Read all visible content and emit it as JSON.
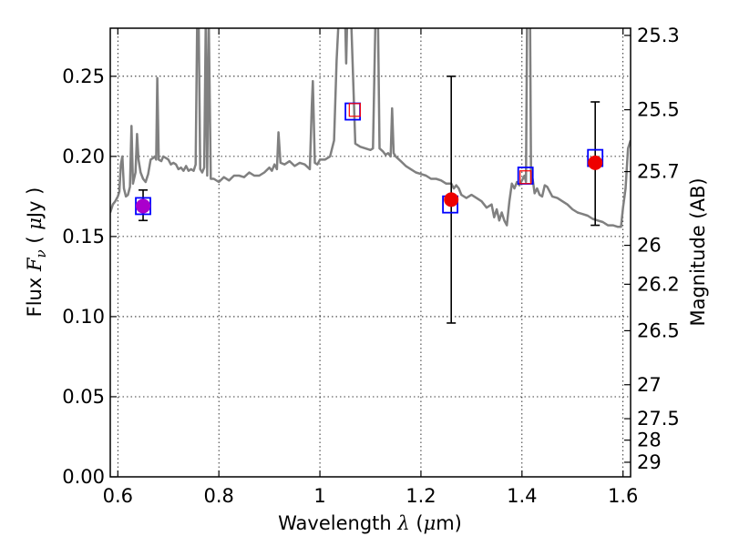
{
  "chart_data": {
    "type": "scatter",
    "xlabel": "Wavelength  λ (μm)",
    "ylabel": "Flux  Fν ( μJy )",
    "y2label": "Magnitude (AB)",
    "xlim": [
      0.585,
      1.615
    ],
    "ylim": [
      0.0,
      0.28
    ],
    "grid": true,
    "x_ticks": [
      {
        "value": 0.6,
        "label": "0.6"
      },
      {
        "value": 0.8,
        "label": "0.8"
      },
      {
        "value": 1.0,
        "label": "1"
      },
      {
        "value": 1.2,
        "label": "1.2"
      },
      {
        "value": 1.4,
        "label": "1.4"
      },
      {
        "value": 1.6,
        "label": "1.6"
      }
    ],
    "y_ticks": [
      {
        "value": 0.0,
        "label": "0.00"
      },
      {
        "value": 0.05,
        "label": "0.05"
      },
      {
        "value": 0.1,
        "label": "0.10"
      },
      {
        "value": 0.15,
        "label": "0.15"
      },
      {
        "value": 0.2,
        "label": "0.20"
      },
      {
        "value": 0.25,
        "label": "0.25"
      }
    ],
    "mag_ticks": [
      {
        "label": "25.3",
        "flux": 0.2755
      },
      {
        "label": "25.5",
        "flux": 0.2291
      },
      {
        "label": "25.7",
        "flux": 0.1905
      },
      {
        "label": "26",
        "flux": 0.1445
      },
      {
        "label": "26.2",
        "flux": 0.1202
      },
      {
        "label": "26.5",
        "flux": 0.0912
      },
      {
        "label": "27",
        "flux": 0.0575
      },
      {
        "label": "27.5",
        "flux": 0.0363
      },
      {
        "label": "28",
        "flux": 0.0229
      },
      {
        "label": "29",
        "flux": 0.0091
      }
    ],
    "model_spectrum": {
      "color": "#808080",
      "points": [
        [
          0.585,
          0.165
        ],
        [
          0.59,
          0.17
        ],
        [
          0.595,
          0.172
        ],
        [
          0.6,
          0.175
        ],
        [
          0.603,
          0.178
        ],
        [
          0.606,
          0.195
        ],
        [
          0.609,
          0.2
        ],
        [
          0.612,
          0.18
        ],
        [
          0.616,
          0.175
        ],
        [
          0.62,
          0.176
        ],
        [
          0.624,
          0.181
        ],
        [
          0.627,
          0.219
        ],
        [
          0.63,
          0.183
        ],
        [
          0.635,
          0.19
        ],
        [
          0.638,
          0.214
        ],
        [
          0.641,
          0.198
        ],
        [
          0.645,
          0.19
        ],
        [
          0.65,
          0.186
        ],
        [
          0.655,
          0.184
        ],
        [
          0.66,
          0.189
        ],
        [
          0.665,
          0.198
        ],
        [
          0.67,
          0.199
        ],
        [
          0.673,
          0.2
        ],
        [
          0.676,
          0.198
        ],
        [
          0.678,
          0.249
        ],
        [
          0.681,
          0.198
        ],
        [
          0.686,
          0.197
        ],
        [
          0.69,
          0.2
        ],
        [
          0.695,
          0.199
        ],
        [
          0.7,
          0.198
        ],
        [
          0.705,
          0.195
        ],
        [
          0.71,
          0.196
        ],
        [
          0.715,
          0.195
        ],
        [
          0.72,
          0.192
        ],
        [
          0.725,
          0.193
        ],
        [
          0.73,
          0.191
        ],
        [
          0.735,
          0.194
        ],
        [
          0.74,
          0.191
        ],
        [
          0.745,
          0.192
        ],
        [
          0.75,
          0.191
        ],
        [
          0.754,
          0.195
        ],
        [
          0.757,
          0.285
        ],
        [
          0.76,
          0.285
        ],
        [
          0.763,
          0.192
        ],
        [
          0.767,
          0.19
        ],
        [
          0.771,
          0.193
        ],
        [
          0.774,
          0.285
        ],
        [
          0.777,
          0.188
        ],
        [
          0.78,
          0.285
        ],
        [
          0.784,
          0.186
        ],
        [
          0.79,
          0.186
        ],
        [
          0.8,
          0.184
        ],
        [
          0.81,
          0.187
        ],
        [
          0.82,
          0.185
        ],
        [
          0.83,
          0.188
        ],
        [
          0.84,
          0.188
        ],
        [
          0.85,
          0.187
        ],
        [
          0.86,
          0.19
        ],
        [
          0.87,
          0.188
        ],
        [
          0.88,
          0.188
        ],
        [
          0.89,
          0.19
        ],
        [
          0.9,
          0.193
        ],
        [
          0.905,
          0.191
        ],
        [
          0.91,
          0.195
        ],
        [
          0.915,
          0.192
        ],
        [
          0.918,
          0.215
        ],
        [
          0.922,
          0.196
        ],
        [
          0.93,
          0.195
        ],
        [
          0.94,
          0.197
        ],
        [
          0.95,
          0.194
        ],
        [
          0.96,
          0.196
        ],
        [
          0.97,
          0.195
        ],
        [
          0.98,
          0.192
        ],
        [
          0.984,
          0.232
        ],
        [
          0.986,
          0.247
        ],
        [
          0.99,
          0.196
        ],
        [
          0.995,
          0.195
        ],
        [
          1.0,
          0.198
        ],
        [
          1.01,
          0.198
        ],
        [
          1.02,
          0.2
        ],
        [
          1.028,
          0.21
        ],
        [
          1.033,
          0.26
        ],
        [
          1.037,
          0.285
        ],
        [
          1.05,
          0.285
        ],
        [
          1.052,
          0.258
        ],
        [
          1.054,
          0.285
        ],
        [
          1.062,
          0.285
        ],
        [
          1.07,
          0.208
        ],
        [
          1.08,
          0.206
        ],
        [
          1.09,
          0.205
        ],
        [
          1.1,
          0.204
        ],
        [
          1.105,
          0.205
        ],
        [
          1.11,
          0.285
        ],
        [
          1.115,
          0.285
        ],
        [
          1.118,
          0.205
        ],
        [
          1.125,
          0.203
        ],
        [
          1.13,
          0.201
        ],
        [
          1.135,
          0.202
        ],
        [
          1.14,
          0.2
        ],
        [
          1.143,
          0.23
        ],
        [
          1.146,
          0.202
        ],
        [
          1.15,
          0.2
        ],
        [
          1.16,
          0.197
        ],
        [
          1.17,
          0.194
        ],
        [
          1.18,
          0.192
        ],
        [
          1.19,
          0.19
        ],
        [
          1.2,
          0.189
        ],
        [
          1.21,
          0.188
        ],
        [
          1.22,
          0.186
        ],
        [
          1.23,
          0.186
        ],
        [
          1.24,
          0.185
        ],
        [
          1.25,
          0.183
        ],
        [
          1.26,
          0.183
        ],
        [
          1.265,
          0.18
        ],
        [
          1.27,
          0.182
        ],
        [
          1.275,
          0.18
        ],
        [
          1.28,
          0.176
        ],
        [
          1.29,
          0.174
        ],
        [
          1.3,
          0.176
        ],
        [
          1.31,
          0.174
        ],
        [
          1.32,
          0.172
        ],
        [
          1.33,
          0.168
        ],
        [
          1.34,
          0.17
        ],
        [
          1.345,
          0.162
        ],
        [
          1.35,
          0.167
        ],
        [
          1.355,
          0.16
        ],
        [
          1.36,
          0.165
        ],
        [
          1.365,
          0.16
        ],
        [
          1.37,
          0.157
        ],
        [
          1.375,
          0.172
        ],
        [
          1.38,
          0.183
        ],
        [
          1.385,
          0.18
        ],
        [
          1.39,
          0.184
        ],
        [
          1.395,
          0.182
        ],
        [
          1.4,
          0.185
        ],
        [
          1.405,
          0.188
        ],
        [
          1.408,
          0.184
        ],
        [
          1.41,
          0.285
        ],
        [
          1.416,
          0.285
        ],
        [
          1.418,
          0.184
        ],
        [
          1.421,
          0.186
        ],
        [
          1.425,
          0.177
        ],
        [
          1.43,
          0.18
        ],
        [
          1.435,
          0.176
        ],
        [
          1.44,
          0.175
        ],
        [
          1.445,
          0.182
        ],
        [
          1.45,
          0.181
        ],
        [
          1.46,
          0.175
        ],
        [
          1.47,
          0.174
        ],
        [
          1.48,
          0.172
        ],
        [
          1.49,
          0.17
        ],
        [
          1.5,
          0.167
        ],
        [
          1.51,
          0.165
        ],
        [
          1.52,
          0.164
        ],
        [
          1.53,
          0.163
        ],
        [
          1.54,
          0.161
        ],
        [
          1.55,
          0.16
        ],
        [
          1.56,
          0.159
        ],
        [
          1.57,
          0.157
        ],
        [
          1.58,
          0.157
        ],
        [
          1.59,
          0.156
        ],
        [
          1.596,
          0.156
        ],
        [
          1.6,
          0.168
        ],
        [
          1.605,
          0.18
        ],
        [
          1.61,
          0.205
        ],
        [
          1.615,
          0.21
        ]
      ]
    },
    "model_magnitudes": {
      "marker": "open-square",
      "color": "#0000ff",
      "points": [
        {
          "x": 0.65,
          "y": 0.169
        },
        {
          "x": 1.065,
          "y": 0.228
        },
        {
          "x": 1.258,
          "y": 0.17
        },
        {
          "x": 1.407,
          "y": 0.188
        },
        {
          "x": 1.545,
          "y": 0.199
        }
      ]
    },
    "model_magnitudes_inner": {
      "marker": "open-square",
      "color": "#ff0000",
      "points": [
        {
          "x": 1.069,
          "y": 0.229
        },
        {
          "x": 1.407,
          "y": 0.187
        }
      ]
    },
    "observed_photometry": {
      "marker": "filled-circle",
      "points": [
        {
          "x": 0.65,
          "y": 0.169,
          "yerr_low": 0.16,
          "yerr_high": 0.179,
          "color": "#aa00cc"
        },
        {
          "x": 1.26,
          "y": 0.173,
          "yerr_low": 0.096,
          "yerr_high": 0.25,
          "color": "#ee0000"
        },
        {
          "x": 1.545,
          "y": 0.196,
          "yerr_low": 0.157,
          "yerr_high": 0.234,
          "color": "#ee0000"
        }
      ]
    }
  }
}
